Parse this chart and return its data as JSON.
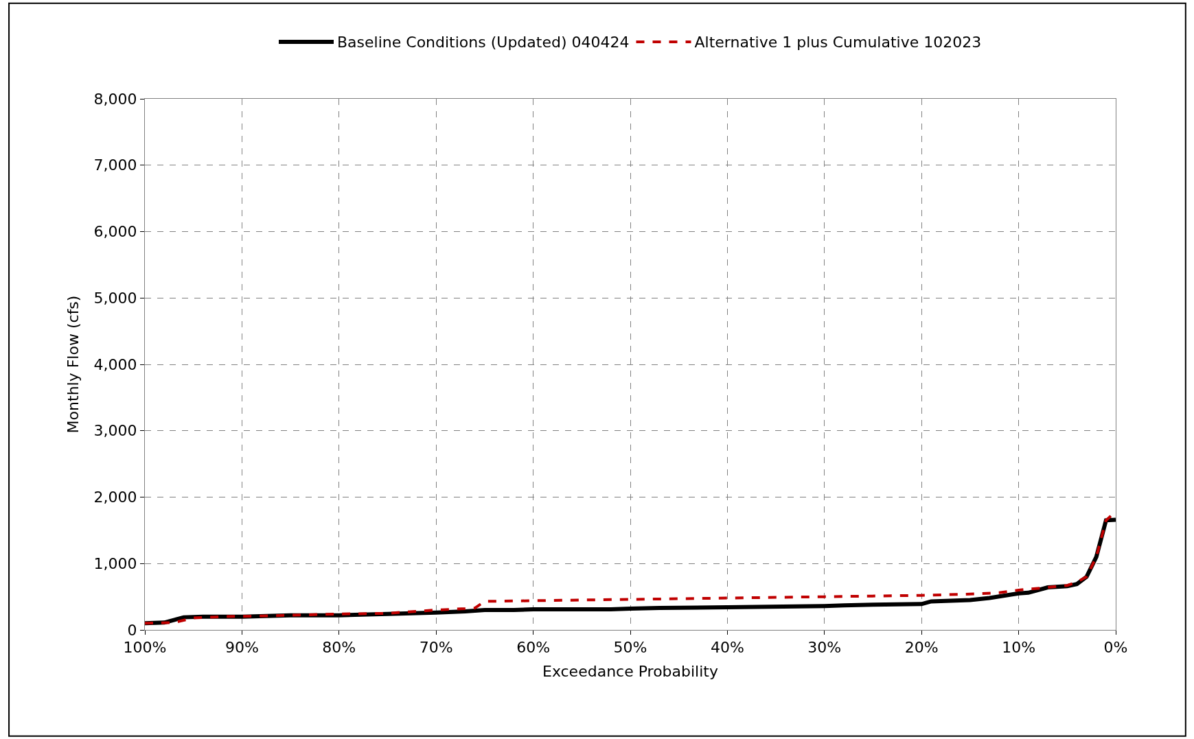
{
  "chart_data": {
    "type": "line",
    "xlabel": "Exceedance Probability",
    "ylabel": "Monthly Flow (cfs)",
    "xlim": [
      100,
      0
    ],
    "xticks": [
      {
        "value": 100,
        "label": "100%"
      },
      {
        "value": 90,
        "label": "90%"
      },
      {
        "value": 80,
        "label": "80%"
      },
      {
        "value": 70,
        "label": "70%"
      },
      {
        "value": 60,
        "label": "60%"
      },
      {
        "value": 50,
        "label": "50%"
      },
      {
        "value": 40,
        "label": "40%"
      },
      {
        "value": 30,
        "label": "30%"
      },
      {
        "value": 20,
        "label": "20%"
      },
      {
        "value": 10,
        "label": "10%"
      },
      {
        "value": 0,
        "label": "0%"
      }
    ],
    "ylim": [
      0,
      8000
    ],
    "yticks": [
      0,
      {
        "value": 1000,
        "label": "1,000"
      },
      {
        "value": 2000,
        "label": "2,000"
      },
      {
        "value": 3000,
        "label": "3,000"
      },
      {
        "value": 4000,
        "label": "4,000"
      },
      {
        "value": 5000,
        "label": "5,000"
      },
      {
        "value": 6000,
        "label": "6,000"
      },
      {
        "value": 7000,
        "label": "7,000"
      },
      {
        "value": 8000,
        "label": "8,000"
      }
    ],
    "grid": true,
    "legend": "top",
    "marker": "none",
    "series": [
      {
        "name": "Baseline Conditions (Updated) 040424",
        "color": "#000000",
        "line_style": "solid",
        "x": [
          100,
          98,
          96,
          94,
          90,
          85,
          80,
          75,
          70,
          67,
          65,
          62,
          60,
          52,
          50,
          47,
          40,
          30,
          28,
          25,
          20,
          19,
          15,
          13,
          10,
          9,
          7,
          5,
          4,
          3,
          2,
          1,
          0
        ],
        "values": [
          100,
          110,
          190,
          200,
          200,
          220,
          220,
          240,
          260,
          280,
          300,
          300,
          310,
          310,
          320,
          330,
          340,
          360,
          370,
          380,
          390,
          430,
          450,
          480,
          550,
          560,
          640,
          660,
          690,
          800,
          1100,
          1650,
          1660
        ]
      },
      {
        "name": "Alternative 1 plus Cumulative 102023",
        "color": "#c00000",
        "line_style": "dashed",
        "x": [
          100,
          97,
          95,
          92,
          88,
          80,
          75,
          70,
          67,
          66,
          65,
          60,
          50,
          40,
          30,
          20,
          15,
          12,
          10,
          7,
          5,
          4,
          3,
          2,
          1,
          0
        ],
        "values": [
          100,
          110,
          180,
          200,
          210,
          240,
          250,
          300,
          320,
          330,
          430,
          440,
          460,
          480,
          500,
          520,
          540,
          560,
          600,
          640,
          670,
          720,
          800,
          1100,
          1650,
          1780
        ]
      }
    ]
  }
}
